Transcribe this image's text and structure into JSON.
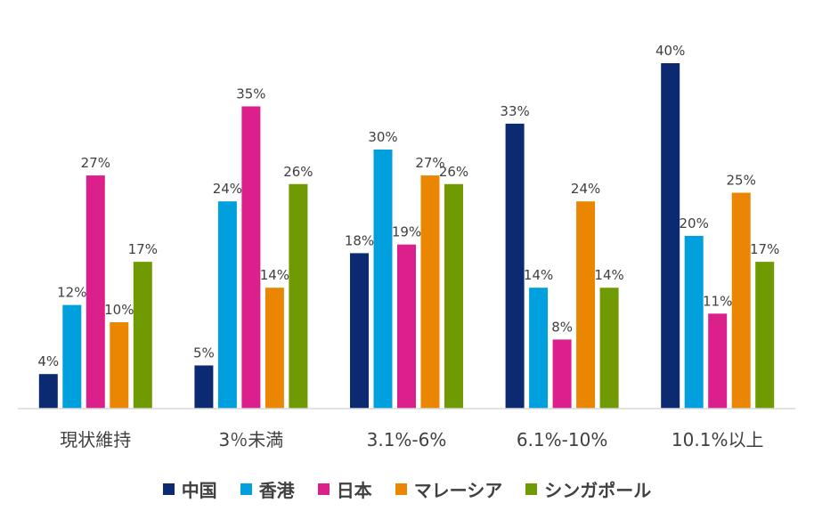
{
  "chart_data": {
    "type": "bar",
    "categories": [
      "現状維持",
      "3％未満",
      "3.1%-6%",
      "6.1%-10%",
      "10.1%以上"
    ],
    "series": [
      {
        "name": "中国",
        "color": "#0b2a72",
        "values": [
          4,
          5,
          18,
          33,
          40
        ],
        "labels": [
          "4%",
          "5%",
          "18%",
          "33%",
          "40%"
        ]
      },
      {
        "name": "香港",
        "color": "#00a0de",
        "values": [
          12,
          24,
          30,
          14,
          20
        ],
        "labels": [
          "12%",
          "24%",
          "30%",
          "14%",
          "20%"
        ]
      },
      {
        "name": "日本",
        "color": "#db1f8b",
        "values": [
          27,
          35,
          19,
          8,
          11
        ],
        "labels": [
          "27%",
          "35%",
          "19%",
          "8%",
          "11%"
        ]
      },
      {
        "name": "マレーシア",
        "color": "#eb8602",
        "values": [
          10,
          14,
          27,
          24,
          25
        ],
        "labels": [
          "10%",
          "14%",
          "27%",
          "24%",
          "25%"
        ]
      },
      {
        "name": "シンガポール",
        "color": "#6f9a01",
        "values": [
          17,
          26,
          26,
          14,
          17
        ],
        "labels": [
          "17%",
          "26%",
          "26%",
          "14%",
          "17%"
        ]
      }
    ],
    "ylim": [
      0,
      40
    ],
    "grid": false,
    "legend_position": "bottom"
  }
}
